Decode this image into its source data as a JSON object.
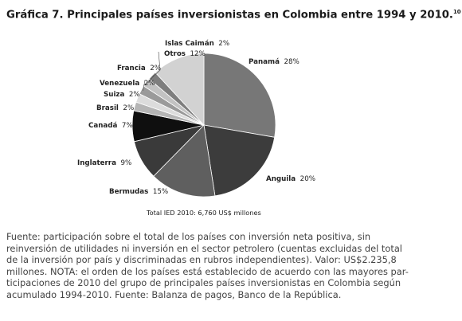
{
  "figure": {
    "title": "Gráfica 7. Principales países inversionistas en Colombia entre 1994 y 2010.",
    "title_note": "10",
    "total_note": "Total IED 2010: 6,760 US$ millones",
    "source_lines": [
      "Fuente: participación sobre el total de los países con inversión neta positiva, sin",
      "reinversión de utilidades ni inversión en el sector petrolero (cuentas excluidas del total",
      "de la inversión por país y discriminadas en rubros independientes). Valor: US$2.235,8",
      "millones. NOTA: el orden de los países está establecido de acuerdo con las mayores par-",
      "ticipaciones de 2010 del grupo de principales países inversionistas en Colombia según",
      "acumulado 1994-2010. Fuente: Balanza de pagos, Banco de la República."
    ]
  },
  "chart_data": {
    "type": "pie",
    "title": "Gráfica 7. Principales países inversionistas en Colombia entre 1994 y 2010.",
    "unit": "%",
    "slices": [
      {
        "label": "Panamá",
        "value": 28,
        "color": "#777777"
      },
      {
        "label": "Anguila",
        "value": 20,
        "color": "#3c3c3c"
      },
      {
        "label": "Bermudas",
        "value": 15,
        "color": "#5f5f5f"
      },
      {
        "label": "Inglaterra",
        "value": 9,
        "color": "#3a3a3a"
      },
      {
        "label": "Canadá",
        "value": 7,
        "color": "#0f0f0f"
      },
      {
        "label": "Brasil",
        "value": 2,
        "color": "#b5b5b5"
      },
      {
        "label": "Suiza",
        "value": 2,
        "color": "#dcdcdc"
      },
      {
        "label": "Venezuela",
        "value": 2,
        "color": "#9a9a9a"
      },
      {
        "label": "Francia",
        "value": 2,
        "color": "#c2c2c2"
      },
      {
        "label": "Islas Caimán",
        "value": 2,
        "color": "#7e7e7e"
      },
      {
        "label": "Otros",
        "value": 12,
        "color": "#d2d2d2"
      }
    ]
  }
}
